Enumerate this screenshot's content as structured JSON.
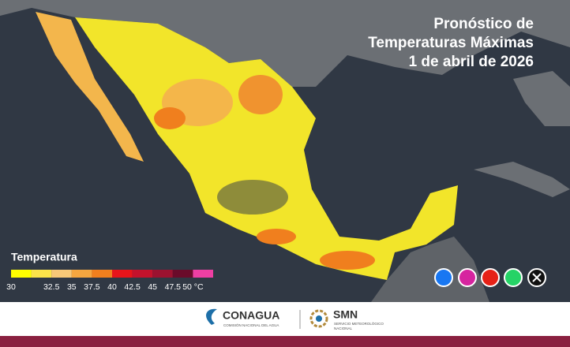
{
  "header": {
    "title": [
      "Pronóstico de",
      "Temperaturas Máximas",
      "1 de abril de 2026"
    ]
  },
  "legend": {
    "title": "Temperatura",
    "labels": [
      "30",
      "32.5",
      "35",
      "37.5",
      "40",
      "42.5",
      "45",
      "47.5",
      "50 °C"
    ],
    "colors": [
      "#ffff00",
      "#fbe34a",
      "#f7c878",
      "#f4a640",
      "#f07f1e",
      "#e8141a",
      "#c4122c",
      "#9c1230",
      "#6a0b2a",
      "#ee3fa3"
    ]
  },
  "footer": {
    "conagua": {
      "name": "CONAGUA",
      "subtitle": "COMISIÓN NACIONAL DEL AGUA"
    },
    "smn": {
      "name": "SMN",
      "subtitle": [
        "SERVICIO METEOROLÓGICO",
        "NACIONAL"
      ]
    }
  }
}
